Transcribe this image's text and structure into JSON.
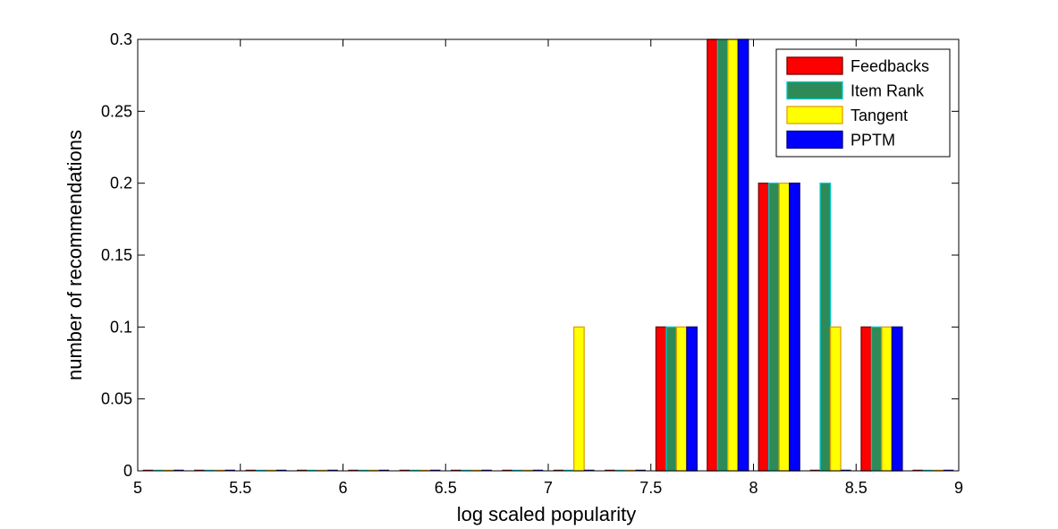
{
  "chart_data": {
    "type": "bar",
    "title": "",
    "xlabel": "log scaled popularity",
    "ylabel": "number of recommendations",
    "xlim": [
      5,
      9
    ],
    "ylim": [
      0,
      0.3
    ],
    "xticks": [
      "5",
      "5.5",
      "6",
      "6.5",
      "7",
      "7.5",
      "8",
      "8.5",
      "9"
    ],
    "yticks": [
      "0",
      "0.05",
      "0.1",
      "0.15",
      "0.2",
      "0.25",
      "0.3"
    ],
    "legend_position": "top-right",
    "grid": false,
    "bin_centers": [
      5.125,
      5.375,
      5.625,
      5.875,
      6.125,
      6.375,
      6.625,
      6.875,
      7.125,
      7.375,
      7.625,
      7.875,
      8.125,
      8.375,
      8.625,
      8.875
    ],
    "series": [
      {
        "name": "Feedbacks",
        "color": "#ff0000",
        "edge": "#7a0000",
        "values": [
          0,
          0,
          0,
          0,
          0,
          0,
          0,
          0,
          0,
          0,
          0.1,
          0.3,
          0.2,
          0,
          0.1,
          0
        ]
      },
      {
        "name": "Item Rank",
        "color": "#2e8b57",
        "edge": "#00c8c8",
        "values": [
          0,
          0,
          0,
          0,
          0,
          0,
          0,
          0,
          0,
          0,
          0.1,
          0.3,
          0.2,
          0.2,
          0.1,
          0
        ]
      },
      {
        "name": "Tangent",
        "color": "#ffff00",
        "edge": "#e0a000",
        "values": [
          0,
          0,
          0,
          0,
          0,
          0,
          0,
          0,
          0.1,
          0,
          0.1,
          0.3,
          0.2,
          0.1,
          0.1,
          0
        ]
      },
      {
        "name": "PPTM",
        "color": "#0000ff",
        "edge": "#000080",
        "values": [
          0,
          0,
          0,
          0,
          0,
          0,
          0,
          0,
          0,
          0,
          0.1,
          0.3,
          0.2,
          0,
          0.1,
          0
        ]
      }
    ]
  }
}
